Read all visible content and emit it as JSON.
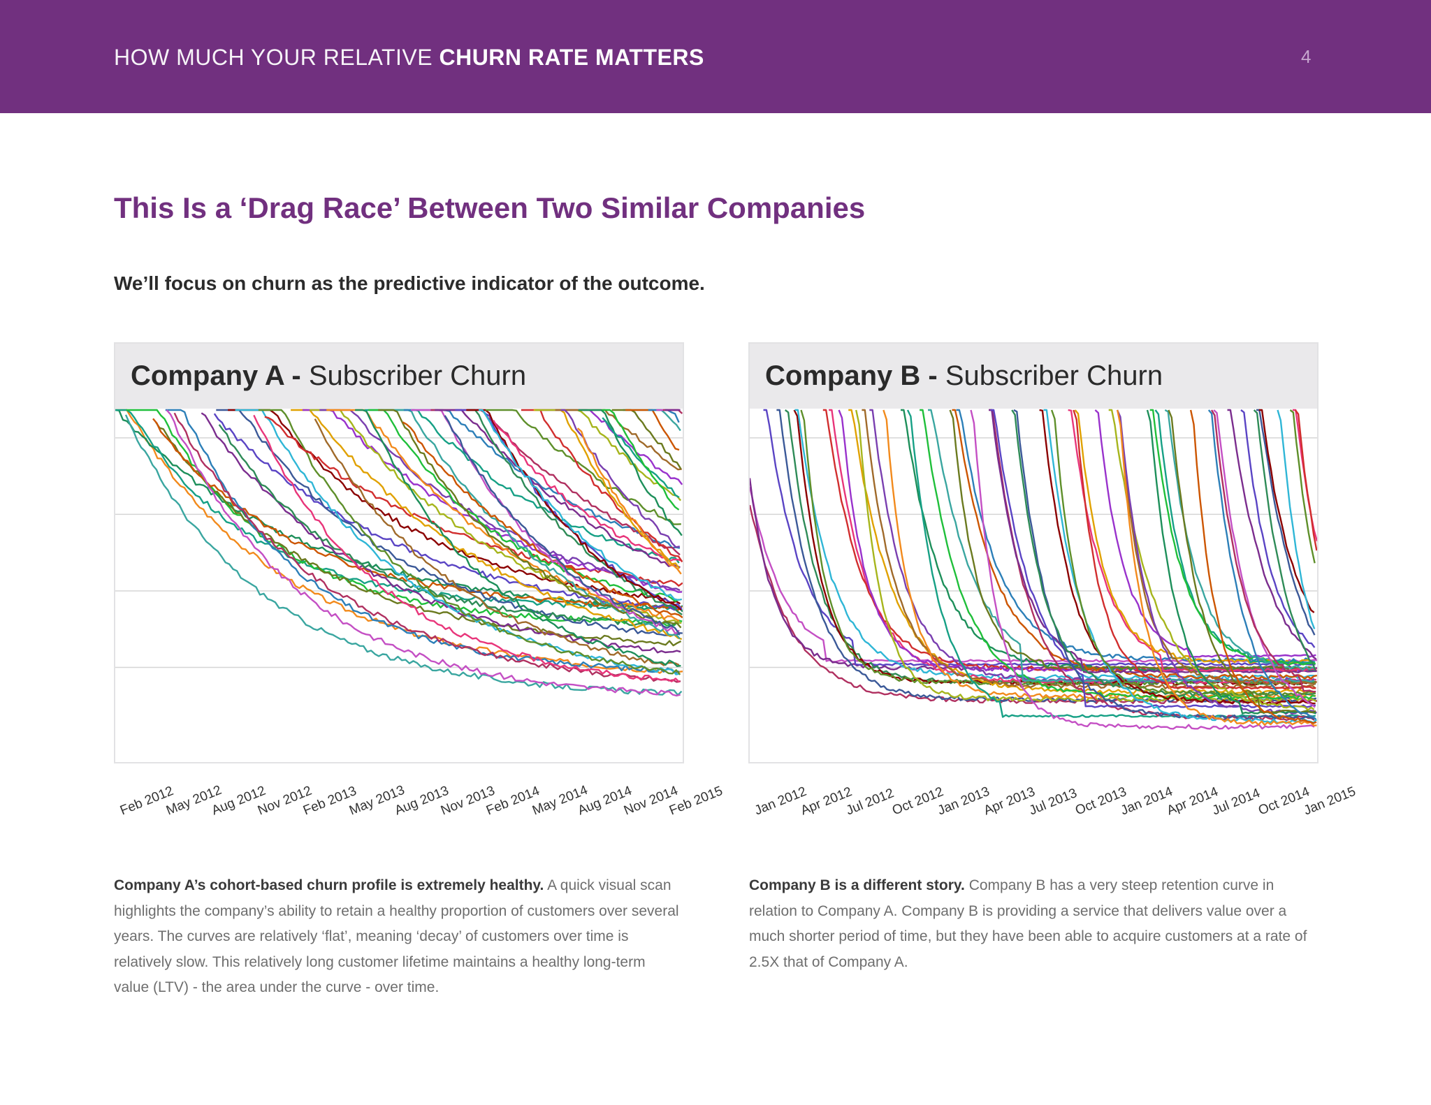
{
  "header": {
    "title_light": "HOW MUCH YOUR RELATIVE",
    "title_bold": "CHURN RATE MATTERS",
    "page_number": "4"
  },
  "main": {
    "title": "This Is a ‘Drag Race’ Between Two Similar Companies",
    "subtitle": "We’ll focus on churn as the predictive indicator of the outcome."
  },
  "colors": {
    "brand_purple": "#71307f",
    "panel_header_bg": "#eae9eb"
  },
  "chart_data": [
    {
      "type": "line",
      "company": "Company A -",
      "metric": "Subscriber Churn",
      "x_ticks": [
        "Feb 2012",
        "May 2012",
        "Aug 2012",
        "Nov 2012",
        "Feb 2013",
        "May 2013",
        "Aug 2013",
        "Nov 2013",
        "Feb 2014",
        "May 2014",
        "Aug 2014",
        "Nov 2014",
        "Feb 2015"
      ],
      "xlim": [
        0,
        37
      ],
      "ylim": [
        0,
        100
      ],
      "grid": "horizontal",
      "gridlines": [
        92,
        70,
        48,
        26
      ],
      "curve_profile": "gradual",
      "cohorts": 60,
      "floor_y": 16
    },
    {
      "type": "line",
      "company": "Company B -",
      "metric": "Subscriber Churn",
      "x_ticks": [
        "Jan 2012",
        "Apr 2012",
        "Jul 2012",
        "Oct 2012",
        "Jan 2013",
        "Apr 2013",
        "Jul 2013",
        "Oct 2013",
        "Jan 2014",
        "Apr 2014",
        "Jul 2014",
        "Oct 2014",
        "Jan 2015"
      ],
      "xlim": [
        0,
        37
      ],
      "ylim": [
        0,
        100
      ],
      "grid": "horizontal",
      "gridlines": [
        92,
        70,
        48,
        26
      ],
      "curve_profile": "steep",
      "cohorts": 60,
      "floor_y": 8
    }
  ],
  "descriptions": {
    "a_lead": "Company A’s cohort-based churn profile is extremely healthy.",
    "a_body": "A quick visual scan highlights the company’s ability to retain a healthy proportion of customers over several years. The curves are relatively ‘flat’, meaning ‘decay’ of customers over time is relatively slow. This relatively long customer lifetime maintains a healthy long-term value (LTV) - the area under the curve - over time.",
    "b_lead": "Company B is a different story.",
    "b_body": "Company B has a very steep retention curve in relation to Company A. Company B is providing a service that delivers value over a much shorter period of time, but they have been able to acquire customers at a rate of 2.5X that of Company A."
  }
}
